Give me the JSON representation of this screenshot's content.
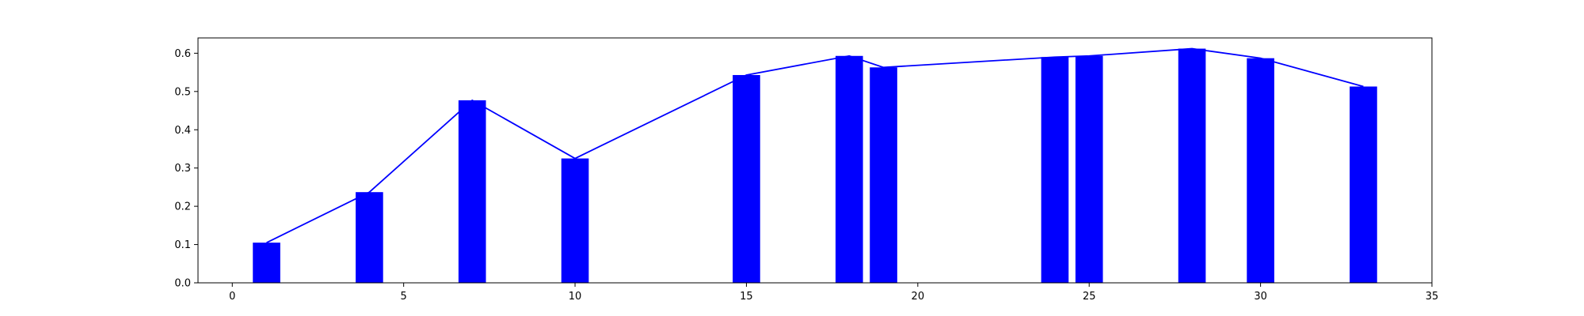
{
  "chart_data": {
    "type": "bar",
    "title": "",
    "xlabel": "",
    "ylabel": "",
    "xlim": [
      -1,
      35
    ],
    "ylim": [
      0,
      0.64
    ],
    "x_ticks": [
      0,
      5,
      10,
      15,
      20,
      25,
      30,
      35
    ],
    "y_ticks": [
      0.0,
      0.1,
      0.2,
      0.3,
      0.4,
      0.5,
      0.6
    ],
    "x_tick_labels": [
      "0",
      "5",
      "10",
      "15",
      "20",
      "25",
      "30",
      "35"
    ],
    "y_tick_labels": [
      "0.0",
      "0.1",
      "0.2",
      "0.3",
      "0.4",
      "0.5",
      "0.6"
    ],
    "grid": false,
    "bar_width": 0.8,
    "x": [
      1,
      4,
      7,
      10,
      15,
      18,
      19,
      24,
      25,
      28,
      30,
      33
    ],
    "series": [
      {
        "kind": "bar",
        "values": [
          0.105,
          0.237,
          0.477,
          0.325,
          0.543,
          0.593,
          0.563,
          0.59,
          0.593,
          0.612,
          0.587,
          0.513
        ]
      },
      {
        "kind": "line",
        "values": [
          0.105,
          0.237,
          0.477,
          0.325,
          0.543,
          0.593,
          0.563,
          0.59,
          0.593,
          0.612,
          0.587,
          0.513
        ]
      }
    ],
    "colors": {
      "bar": "#0000ff",
      "line": "#0000ff",
      "axes": "#000000"
    }
  }
}
